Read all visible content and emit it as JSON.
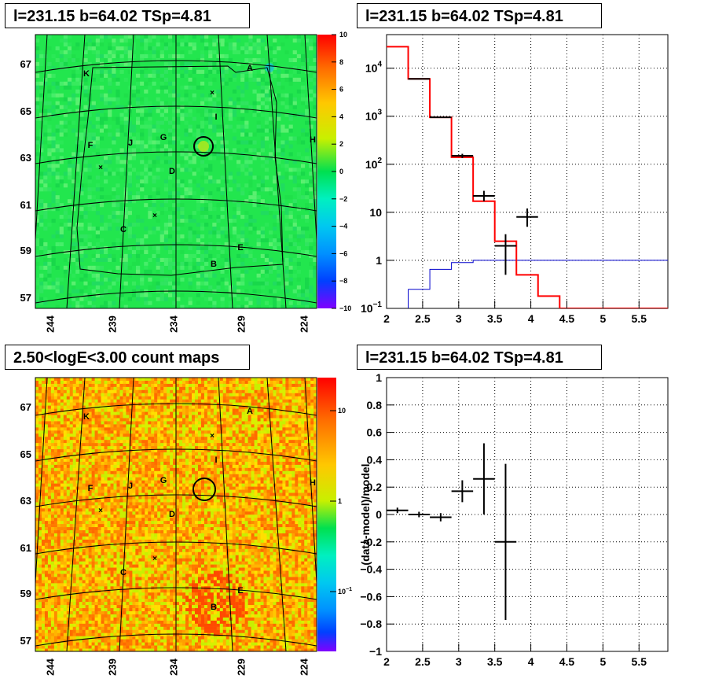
{
  "titles": {
    "top_left": "l=231.15 b=64.02 TSp=4.81",
    "top_right": "l=231.15 b=64.02 TSp=4.81",
    "bottom_left": "2.50<logE<3.00 count maps",
    "bottom_right": "l=231.15 b=64.02 TSp=4.81"
  },
  "chart_data": [
    {
      "type": "heatmap",
      "panel": "tsmap",
      "lon_ticks": [
        "244",
        "239",
        "234",
        "229",
        "224"
      ],
      "lat_ticks": [
        "67",
        "65",
        "63",
        "61",
        "59",
        "57"
      ],
      "colorbar": {
        "min": -10,
        "max": 10,
        "ticks": [
          "10",
          "8",
          "6",
          "4",
          "2",
          "0",
          "−2",
          "−4",
          "−6",
          "−8",
          "−10"
        ]
      },
      "sources": [
        "A",
        "B",
        "C",
        "D",
        "E",
        "F",
        "G",
        "H",
        "I",
        "J",
        "K"
      ],
      "colors": {
        "background": "#22e64e",
        "marker": "#000000"
      }
    },
    {
      "type": "line",
      "panel": "spectrum",
      "xlim": [
        2,
        5.9
      ],
      "ylim": [
        0.1,
        50000
      ],
      "yscale": "log",
      "x_ticks": [
        "2",
        "2.5",
        "3",
        "3.5",
        "4",
        "4.5",
        "5",
        "5.5"
      ],
      "y_ticks": [
        "10^-1",
        "1",
        "10",
        "10^2",
        "10^3",
        "10^4"
      ],
      "model_steps": {
        "edges": [
          2.0,
          2.3,
          2.6,
          2.9,
          3.2,
          3.5,
          3.8,
          4.1,
          4.4,
          5.9
        ],
        "values": [
          28000,
          6000,
          950,
          140,
          17,
          2.5,
          0.5,
          0.18,
          0.1
        ]
      },
      "background_steps": {
        "edges": [
          2.3,
          2.6,
          2.9,
          3.2,
          5.9
        ],
        "values": [
          0.25,
          0.65,
          0.9,
          1.0
        ]
      },
      "data_points": [
        {
          "x": 2.45,
          "y": 6000,
          "xerr": 0.15,
          "ylo": 6000,
          "yhi": 6000
        },
        {
          "x": 2.75,
          "y": 950,
          "xerr": 0.15,
          "ylo": 950,
          "yhi": 950
        },
        {
          "x": 3.05,
          "y": 150,
          "xerr": 0.15,
          "ylo": 135,
          "yhi": 165
        },
        {
          "x": 3.35,
          "y": 22,
          "xerr": 0.15,
          "ylo": 17,
          "yhi": 28
        },
        {
          "x": 3.65,
          "y": 2.0,
          "xerr": 0.15,
          "ylo": 0.5,
          "yhi": 3.5
        },
        {
          "x": 3.95,
          "y": 8.0,
          "xerr": 0.15,
          "ylo": 5,
          "yhi": 12
        }
      ],
      "colors": {
        "model": "#ff0000",
        "background": "#0000cc",
        "data": "#000000"
      }
    },
    {
      "type": "heatmap",
      "panel": "countmap",
      "lon_ticks": [
        "244",
        "239",
        "234",
        "229",
        "224"
      ],
      "lat_ticks": [
        "67",
        "65",
        "63",
        "61",
        "59",
        "57"
      ],
      "colorbar": {
        "scale": "log",
        "ticks": [
          "10",
          "1",
          "10^-1"
        ]
      },
      "sources": [
        "A",
        "B",
        "C",
        "D",
        "E",
        "F",
        "G",
        "H",
        "I",
        "J",
        "K"
      ]
    },
    {
      "type": "scatter",
      "panel": "residuals",
      "ylabel": "(data-model)/model",
      "xlim": [
        2,
        5.9
      ],
      "ylim": [
        -1,
        1
      ],
      "x_ticks": [
        "2",
        "2.5",
        "3",
        "3.5",
        "4",
        "4.5",
        "5",
        "5.5"
      ],
      "y_ticks": [
        "1",
        "0.8",
        "0.6",
        "0.4",
        "0.2",
        "0",
        "−0.2",
        "−0.4",
        "−0.6",
        "−0.8",
        "−1"
      ],
      "data_points": [
        {
          "x": 2.15,
          "y": 0.03,
          "xerr": 0.15,
          "yerr": 0.02
        },
        {
          "x": 2.45,
          "y": 0.0,
          "xerr": 0.15,
          "yerr": 0.02
        },
        {
          "x": 2.75,
          "y": -0.02,
          "xerr": 0.15,
          "yerr": 0.03
        },
        {
          "x": 3.05,
          "y": 0.17,
          "xerr": 0.15,
          "yerr": 0.08
        },
        {
          "x": 3.35,
          "y": 0.26,
          "xerr": 0.15,
          "yerr": 0.26
        },
        {
          "x": 3.65,
          "y": -0.2,
          "xerr": 0.15,
          "yerr": 0.57
        }
      ]
    }
  ]
}
